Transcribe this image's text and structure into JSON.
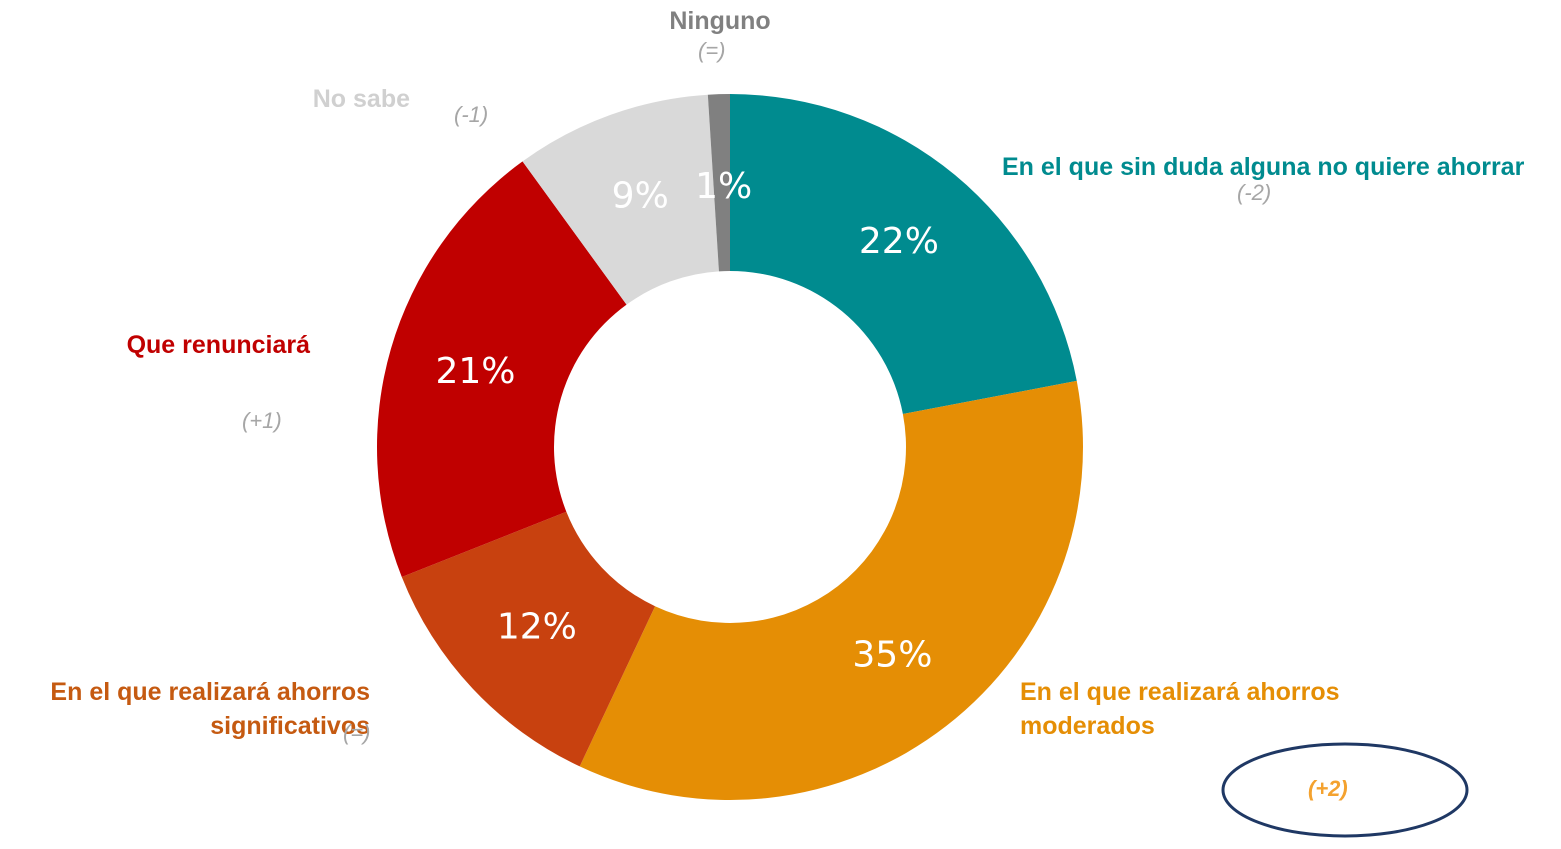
{
  "chart_data": {
    "type": "donut",
    "categories": [
      "En el que sin duda alguna no quiere ahorrar",
      "En el que realizará ahorros moderados",
      "En el que realizará ahorros significativos",
      "Que renunciará",
      "No sabe",
      "Ninguno"
    ],
    "values": [
      22,
      35,
      12,
      21,
      9,
      1
    ],
    "value_labels": [
      "22%",
      "35%",
      "12%",
      "21%",
      "9%",
      "1%"
    ],
    "changes": [
      "(-2)",
      "(+2)",
      "(=)",
      "(+1)",
      "(-1)",
      "(=)"
    ],
    "colors": [
      "#008b8f",
      "#e58e05",
      "#c8410f",
      "#c00000",
      "#d9d9d9",
      "#808080"
    ]
  }
}
